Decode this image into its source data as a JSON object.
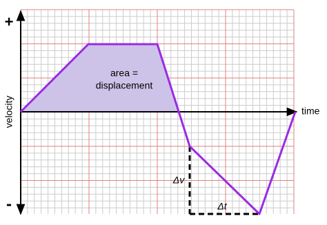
{
  "y_axis": {
    "plus": "+",
    "minus": "-",
    "label": "velocity"
  },
  "x_axis": {
    "label": "time"
  },
  "area_label": [
    "area =",
    "displacement"
  ],
  "delta_v": "Δv",
  "delta_t": "Δt"
}
